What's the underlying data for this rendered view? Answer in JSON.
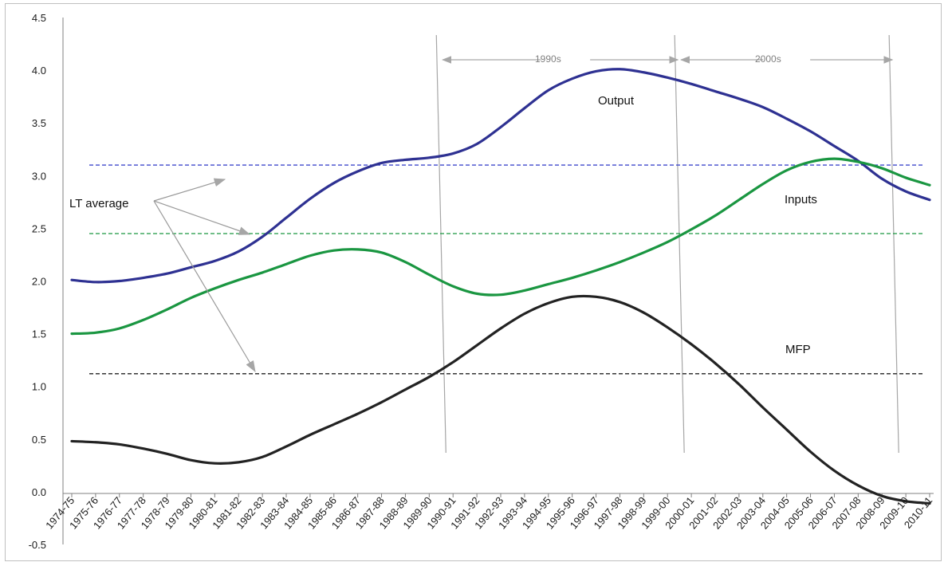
{
  "chart_data": {
    "type": "line",
    "title": "",
    "xlabel": "",
    "ylabel": "",
    "ylim": [
      -0.5,
      4.5
    ],
    "yticks": [
      "-0.5",
      "0.0",
      "0.5",
      "1.0",
      "1.5",
      "2.0",
      "2.5",
      "3.0",
      "3.5",
      "4.0",
      "4.5"
    ],
    "grid": false,
    "categories": [
      "1974-75",
      "1975-76",
      "1976-77",
      "1977-78",
      "1978-79",
      "1979-80",
      "1980-81",
      "1981-82",
      "1982-83",
      "1983-84",
      "1984-85",
      "1985-86",
      "1986-87",
      "1987-88",
      "1988-89",
      "1989-90",
      "1990-91",
      "1991-92",
      "1992-93",
      "1993-94",
      "1994-95",
      "1995-96",
      "1996-97",
      "1997-98",
      "1998-99",
      "1999-00",
      "2000-01",
      "2001-02",
      "2002-03",
      "2003-04",
      "2004-05",
      "2005-06",
      "2006-07",
      "2007-08",
      "2008-09",
      "2009-10",
      "2010-11"
    ],
    "series": [
      {
        "name": "Output",
        "color": "#2e3192",
        "values": [
          2.01,
          1.99,
          2.0,
          2.03,
          2.07,
          2.13,
          2.19,
          2.28,
          2.42,
          2.6,
          2.78,
          2.93,
          3.04,
          3.12,
          3.15,
          3.17,
          3.21,
          3.3,
          3.46,
          3.64,
          3.81,
          3.92,
          3.99,
          4.01,
          3.98,
          3.93,
          3.87,
          3.8,
          3.73,
          3.65,
          3.54,
          3.42,
          3.28,
          3.14,
          2.97,
          2.85,
          2.77
        ]
      },
      {
        "name": "Inputs",
        "color": "#1a9641",
        "values": [
          1.5,
          1.51,
          1.55,
          1.63,
          1.73,
          1.84,
          1.93,
          2.01,
          2.08,
          2.16,
          2.24,
          2.29,
          2.3,
          2.27,
          2.18,
          2.06,
          1.95,
          1.88,
          1.87,
          1.91,
          1.97,
          2.03,
          2.1,
          2.18,
          2.27,
          2.37,
          2.49,
          2.62,
          2.77,
          2.92,
          3.05,
          3.13,
          3.16,
          3.13,
          3.07,
          2.98,
          2.91
        ]
      },
      {
        "name": "MFP",
        "color": "#222222",
        "values": [
          0.48,
          0.47,
          0.45,
          0.41,
          0.36,
          0.3,
          0.27,
          0.28,
          0.33,
          0.43,
          0.54,
          0.64,
          0.74,
          0.85,
          0.97,
          1.09,
          1.23,
          1.39,
          1.55,
          1.69,
          1.79,
          1.85,
          1.85,
          1.8,
          1.7,
          1.56,
          1.4,
          1.22,
          1.02,
          0.8,
          0.59,
          0.38,
          0.2,
          0.06,
          -0.04,
          -0.09,
          -0.11
        ]
      }
    ],
    "averages": [
      {
        "series": "Output",
        "value": 3.1,
        "color": "#3f48cc"
      },
      {
        "series": "Inputs",
        "value": 2.45,
        "color": "#1a9641"
      },
      {
        "series": "MFP",
        "value": 1.12,
        "color": "#222222"
      }
    ],
    "annotations": {
      "lt_average_label": "LT average",
      "output_label": "Output",
      "inputs_label": "Inputs",
      "mfp_label": "MFP",
      "period_1990s": "1990s",
      "period_2000s": "2000s"
    },
    "period_boundaries": [
      "1989-90",
      "1999-00",
      "2008-09"
    ]
  }
}
